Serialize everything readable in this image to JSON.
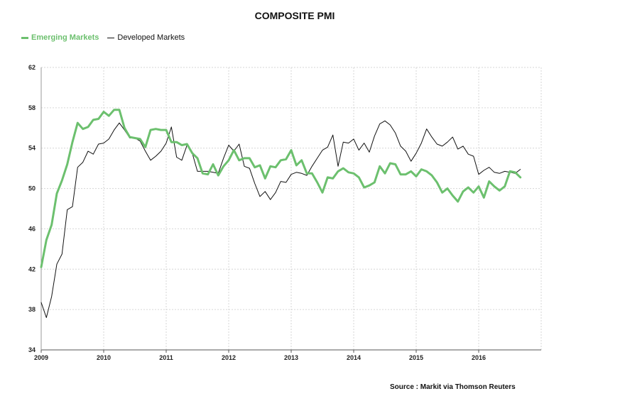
{
  "chart_data": {
    "type": "line",
    "title": "COMPOSITE PMI",
    "xlabel": "",
    "ylabel": "",
    "ylim": [
      34,
      62
    ],
    "yticks": [
      34,
      38,
      42,
      46,
      50,
      54,
      58,
      62
    ],
    "xlim": [
      2009.0,
      2017.0
    ],
    "xticks": [
      "2009",
      "2010",
      "2011",
      "2012",
      "2013",
      "2014",
      "2015",
      "2016"
    ],
    "grid": true,
    "legend_position": "top-left",
    "source": "Source : Markit via Thomson Reuters",
    "series": [
      {
        "name": "Emerging Markets",
        "color": "#6cc06e",
        "line_width": 3,
        "x": [
          2009.0,
          2009.083,
          2009.167,
          2009.25,
          2009.333,
          2009.417,
          2009.5,
          2009.583,
          2009.667,
          2009.75,
          2009.833,
          2009.917,
          2010.0,
          2010.083,
          2010.167,
          2010.25,
          2010.333,
          2010.417,
          2010.5,
          2010.583,
          2010.667,
          2010.75,
          2010.833,
          2010.917,
          2011.0,
          2011.083,
          2011.167,
          2011.25,
          2011.333,
          2011.417,
          2011.5,
          2011.583,
          2011.667,
          2011.75,
          2011.833,
          2011.917,
          2012.0,
          2012.083,
          2012.167,
          2012.25,
          2012.333,
          2012.417,
          2012.5,
          2012.583,
          2012.667,
          2012.75,
          2012.833,
          2012.917,
          2013.0,
          2013.083,
          2013.167,
          2013.25,
          2013.333,
          2013.417,
          2013.5,
          2013.583,
          2013.667,
          2013.75,
          2013.833,
          2013.917,
          2014.0,
          2014.083,
          2014.167,
          2014.25,
          2014.333,
          2014.417,
          2014.5,
          2014.583,
          2014.667,
          2014.75,
          2014.833,
          2014.917,
          2015.0,
          2015.083,
          2015.167,
          2015.25,
          2015.333,
          2015.417,
          2015.5,
          2015.583,
          2015.667,
          2015.75,
          2015.833,
          2015.917,
          2016.0,
          2016.083,
          2016.167,
          2016.25,
          2016.333,
          2016.417,
          2016.5,
          2016.583,
          2016.667
        ],
        "values": [
          42.2,
          44.9,
          46.4,
          49.5,
          50.8,
          52.4,
          54.6,
          56.5,
          55.9,
          56.1,
          56.8,
          56.9,
          57.6,
          57.2,
          57.8,
          57.8,
          56.0,
          55.1,
          55.0,
          54.9,
          54.1,
          55.8,
          55.9,
          55.8,
          55.8,
          54.6,
          54.6,
          54.3,
          54.4,
          53.5,
          53.0,
          51.5,
          51.4,
          52.4,
          51.3,
          52.2,
          52.8,
          53.8,
          52.8,
          53.0,
          53.0,
          52.1,
          52.3,
          51.0,
          52.2,
          52.1,
          52.8,
          52.9,
          53.8,
          52.3,
          52.8,
          51.5,
          51.5,
          50.6,
          49.6,
          51.1,
          51.0,
          51.7,
          52.0,
          51.6,
          51.5,
          51.1,
          50.1,
          50.3,
          50.6,
          52.2,
          51.5,
          52.5,
          52.4,
          51.4,
          51.4,
          51.7,
          51.2,
          51.9,
          51.7,
          51.3,
          50.6,
          49.6,
          50.0,
          49.3,
          48.7,
          49.7,
          50.1,
          49.6,
          50.2,
          49.1,
          50.7,
          50.2,
          49.8,
          50.2,
          51.7,
          51.6,
          51.1
        ]
      },
      {
        "name": "Developed Markets",
        "color": "#111111",
        "line_width": 1,
        "x": [
          2009.0,
          2009.083,
          2009.167,
          2009.25,
          2009.333,
          2009.417,
          2009.5,
          2009.583,
          2009.667,
          2009.75,
          2009.833,
          2009.917,
          2010.0,
          2010.083,
          2010.167,
          2010.25,
          2010.333,
          2010.417,
          2010.5,
          2010.583,
          2010.667,
          2010.75,
          2010.833,
          2010.917,
          2011.0,
          2011.083,
          2011.167,
          2011.25,
          2011.333,
          2011.417,
          2011.5,
          2011.583,
          2011.667,
          2011.75,
          2011.833,
          2011.917,
          2012.0,
          2012.083,
          2012.167,
          2012.25,
          2012.333,
          2012.417,
          2012.5,
          2012.583,
          2012.667,
          2012.75,
          2012.833,
          2012.917,
          2013.0,
          2013.083,
          2013.167,
          2013.25,
          2013.333,
          2013.417,
          2013.5,
          2013.583,
          2013.667,
          2013.75,
          2013.833,
          2013.917,
          2014.0,
          2014.083,
          2014.167,
          2014.25,
          2014.333,
          2014.417,
          2014.5,
          2014.583,
          2014.667,
          2014.75,
          2014.833,
          2014.917,
          2015.0,
          2015.083,
          2015.167,
          2015.25,
          2015.333,
          2015.417,
          2015.5,
          2015.583,
          2015.667,
          2015.75,
          2015.833,
          2015.917,
          2016.0,
          2016.083,
          2016.167,
          2016.25,
          2016.333,
          2016.417,
          2016.5,
          2016.583,
          2016.667
        ],
        "values": [
          38.7,
          37.2,
          39.3,
          42.5,
          43.5,
          47.9,
          48.2,
          52.1,
          52.6,
          53.7,
          53.4,
          54.4,
          54.5,
          54.9,
          55.8,
          56.5,
          55.8,
          55.0,
          55.0,
          54.7,
          53.7,
          52.8,
          53.2,
          53.7,
          54.5,
          56.1,
          53.1,
          52.8,
          54.3,
          53.5,
          51.7,
          51.7,
          51.7,
          51.6,
          51.5,
          53.0,
          54.3,
          53.7,
          54.4,
          52.2,
          52.0,
          50.5,
          49.2,
          49.7,
          48.9,
          49.6,
          50.7,
          50.6,
          51.4,
          51.6,
          51.5,
          51.3,
          52.2,
          53.0,
          53.8,
          54.1,
          55.3,
          52.2,
          54.6,
          54.5,
          54.9,
          53.8,
          54.5,
          53.6,
          55.2,
          56.4,
          56.7,
          56.3,
          55.5,
          54.2,
          53.7,
          52.7,
          53.5,
          54.5,
          55.9,
          55.1,
          54.4,
          54.2,
          54.6,
          55.1,
          53.9,
          54.2,
          53.4,
          53.2,
          51.4,
          51.8,
          52.1,
          51.6,
          51.5,
          51.7,
          51.6,
          51.5,
          51.9
        ]
      }
    ]
  }
}
